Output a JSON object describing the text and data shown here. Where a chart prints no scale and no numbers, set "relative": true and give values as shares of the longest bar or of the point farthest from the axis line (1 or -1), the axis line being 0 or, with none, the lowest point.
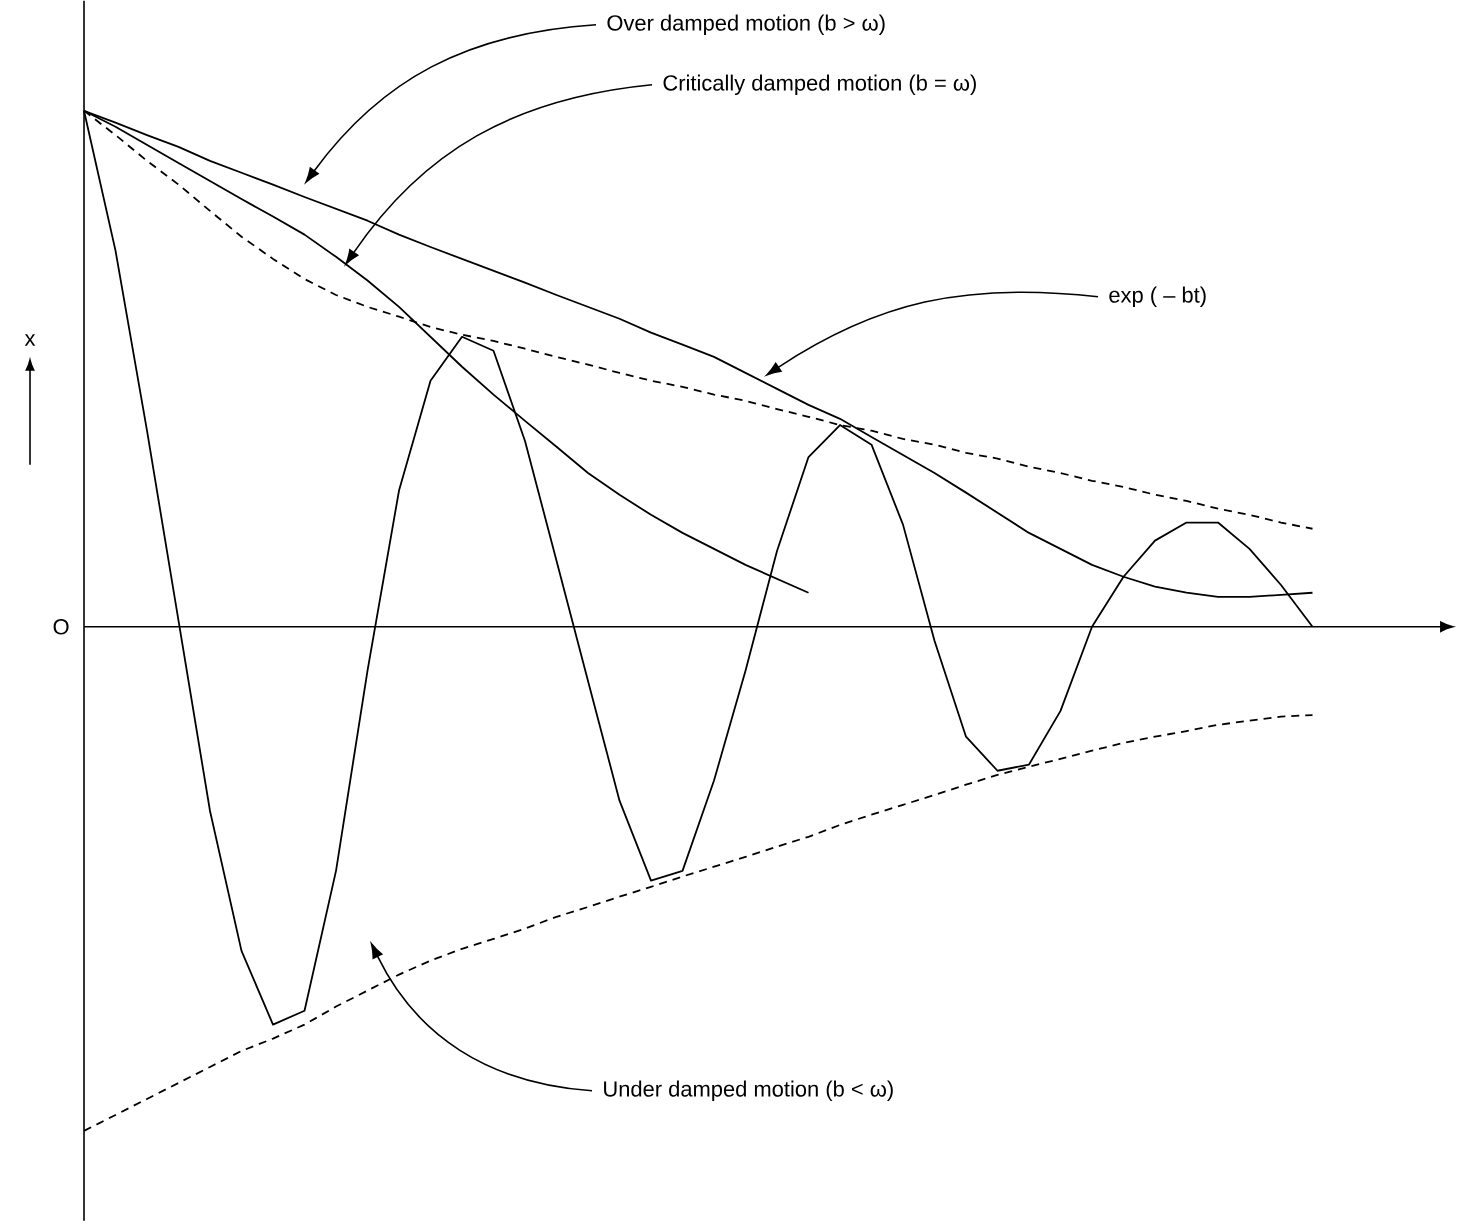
{
  "chart_data": {
    "type": "line",
    "relative": true,
    "ylabel": "x",
    "categories": [
      null,
      null,
      null,
      null,
      null,
      null,
      null,
      null,
      null,
      null,
      null,
      null,
      null,
      null,
      null,
      null,
      null,
      null,
      null,
      null,
      null,
      null,
      null,
      null,
      null,
      null,
      null,
      null,
      null,
      null,
      null,
      null,
      null,
      null,
      null,
      null,
      null,
      null,
      null,
      null
    ],
    "annotations": [
      "Over damped motion (b > ω)",
      "Critically damped motion (b = ω)",
      "exp ( – bt)",
      "Under damped motion (b < ω)",
      "O"
    ],
    "series": [
      {
        "color": "#000000",
        "line_style": "solid",
        "values": [
          1.0,
          0.977,
          0.953,
          0.93,
          0.903,
          0.88,
          0.857,
          0.833,
          0.81,
          0.787,
          0.76,
          0.736,
          0.713,
          0.69,
          0.667,
          0.643,
          0.62,
          0.597,
          0.57,
          0.547,
          0.523,
          0.492,
          0.461,
          0.43,
          0.403,
          0.368,
          0.333,
          0.298,
          0.26,
          0.221,
          0.182,
          0.151,
          0.12,
          0.097,
          0.078,
          0.066,
          0.058,
          0.058,
          0.062,
          0.066
        ]
      },
      {
        "color": "#000000",
        "line_style": "solid",
        "values": [
          1.0,
          0.969,
          0.934,
          0.899,
          0.864,
          0.829,
          0.795,
          0.76,
          0.717,
          0.671,
          0.62,
          0.562,
          0.504,
          0.45,
          0.399,
          0.349,
          0.298,
          0.256,
          0.217,
          0.182,
          0.151,
          0.12,
          0.093,
          0.066,
          null,
          null,
          null,
          null,
          null,
          null,
          null,
          null,
          null,
          null,
          null,
          null,
          null,
          null,
          null,
          null
        ]
      },
      {
        "color": "#000000",
        "line_style": "solid",
        "values": [
          1.0,
          0.729,
          0.38,
          0.012,
          -0.357,
          -0.628,
          -0.771,
          -0.744,
          -0.473,
          -0.085,
          0.264,
          0.477,
          0.562,
          0.535,
          0.36,
          0.128,
          -0.105,
          -0.337,
          -0.492,
          -0.473,
          -0.298,
          -0.085,
          0.147,
          0.329,
          0.391,
          0.353,
          0.198,
          -0.027,
          -0.213,
          -0.279,
          -0.267,
          -0.163,
          0,
          0.097,
          0.167,
          0.202,
          0.202,
          0.151,
          0.081,
          0
        ]
      },
      {
        "color": "#000000",
        "line_style": "dashed",
        "values": [
          1.0,
          0.953,
          0.903,
          0.857,
          0.806,
          0.756,
          0.713,
          0.674,
          0.643,
          0.62,
          0.601,
          0.581,
          0.566,
          0.554,
          0.539,
          0.523,
          0.508,
          0.492,
          0.477,
          0.465,
          0.45,
          0.438,
          0.422,
          0.407,
          0.391,
          0.38,
          0.364,
          0.353,
          0.337,
          0.326,
          0.31,
          0.298,
          0.283,
          0.271,
          0.256,
          0.244,
          0.229,
          0.217,
          0.202,
          0.19
        ]
      },
      {
        "color": "#000000",
        "line_style": "dashed",
        "values": [
          -0.977,
          -0.946,
          -0.915,
          -0.884,
          -0.853,
          -0.822,
          -0.798,
          -0.771,
          -0.736,
          -0.705,
          -0.674,
          -0.647,
          -0.624,
          -0.605,
          -0.585,
          -0.562,
          -0.543,
          -0.523,
          -0.504,
          -0.484,
          -0.465,
          -0.446,
          -0.426,
          -0.407,
          -0.384,
          -0.364,
          -0.345,
          -0.326,
          -0.306,
          -0.287,
          -0.271,
          -0.256,
          -0.24,
          -0.225,
          -0.213,
          -0.202,
          -0.19,
          -0.182,
          -0.174,
          -0.171
        ]
      }
    ]
  }
}
